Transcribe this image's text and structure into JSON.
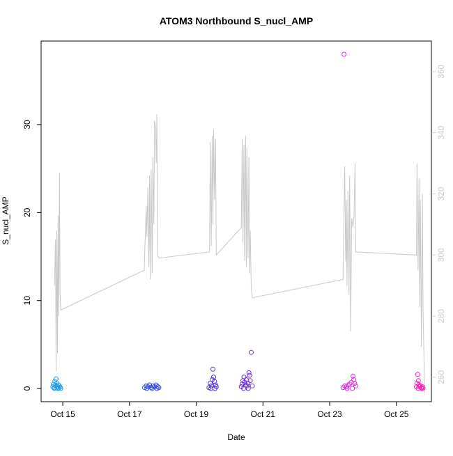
{
  "chart_data": {
    "type": "scatter",
    "title": "ATOM3 Northbound S_nucl_AMP",
    "xlabel": "Date",
    "ylabel": "S_nucl_AMP",
    "x_ticks": [
      "Oct 15",
      "Oct 17",
      "Oct 19",
      "Oct 21",
      "Oct 23",
      "Oct 25"
    ],
    "x_tick_days": [
      15,
      17,
      19,
      21,
      23,
      25
    ],
    "xlim_days": [
      14.35,
      26.05
    ],
    "y_left_ticks": [
      0,
      10,
      20,
      30
    ],
    "y_left_tick_labels": [
      "0",
      "10",
      "20",
      "30"
    ],
    "ylim_left": [
      -1.5,
      39.5
    ],
    "y_right_ticks": [
      260,
      280,
      300,
      320,
      340,
      360
    ],
    "y_right_tick_labels": [
      "260",
      "280",
      "300",
      "320",
      "340",
      "360"
    ],
    "ylim_right": [
      252,
      370
    ],
    "grid": false,
    "colors": {
      "axis": "#000000",
      "right_axis": "#cccccc",
      "secondary_line": "#c8c8c8",
      "background": "#ffffff"
    },
    "secondary_series": {
      "axis": "right",
      "segments": [
        [
          [
            14.75,
            290
          ],
          [
            14.78,
            305
          ],
          [
            14.8,
            262
          ],
          [
            14.82,
            308
          ],
          [
            14.84,
            268
          ],
          [
            14.86,
            313
          ],
          [
            14.88,
            280
          ],
          [
            14.9,
            327
          ],
          [
            14.92,
            286
          ],
          [
            14.94,
            282
          ]
        ],
        [
          [
            17.44,
            295
          ],
          [
            17.5,
            316
          ],
          [
            17.52,
            306
          ],
          [
            17.55,
            322
          ],
          [
            17.58,
            296
          ],
          [
            17.6,
            326
          ],
          [
            17.62,
            292
          ],
          [
            17.65,
            328
          ],
          [
            17.68,
            294
          ],
          [
            17.7,
            332
          ],
          [
            17.73,
            310
          ],
          [
            17.75,
            344
          ],
          [
            17.78,
            342
          ],
          [
            17.8,
            330
          ],
          [
            17.82,
            346
          ],
          [
            17.84,
            300
          ],
          [
            17.88,
            299
          ]
        ],
        [
          [
            19.4,
            301
          ],
          [
            19.42,
            337
          ],
          [
            19.45,
            303
          ],
          [
            19.48,
            339
          ],
          [
            19.5,
            310
          ],
          [
            19.52,
            341
          ],
          [
            19.55,
            318
          ],
          [
            19.58,
            338
          ],
          [
            19.6,
            300
          ]
        ],
        [
          [
            20.35,
            309
          ],
          [
            20.38,
            338
          ],
          [
            20.4,
            304
          ],
          [
            20.43,
            336
          ],
          [
            20.45,
            298
          ],
          [
            20.48,
            339
          ],
          [
            20.5,
            296
          ],
          [
            20.52,
            335
          ],
          [
            20.55,
            299
          ],
          [
            20.58,
            332
          ],
          [
            20.6,
            294
          ],
          [
            20.62,
            308
          ],
          [
            20.65,
            289
          ],
          [
            20.68,
            286
          ]
        ],
        [
          [
            23.4,
            292
          ],
          [
            23.45,
            329
          ],
          [
            23.48,
            298
          ],
          [
            23.5,
            318
          ],
          [
            23.52,
            290
          ],
          [
            23.55,
            321
          ],
          [
            23.58,
            287
          ],
          [
            23.6,
            326
          ],
          [
            23.63,
            275
          ],
          [
            23.66,
            312
          ],
          [
            23.7,
            309
          ],
          [
            23.73,
            313
          ],
          [
            23.76,
            330
          ],
          [
            23.78,
            301
          ]
        ],
        [
          [
            25.6,
            300
          ],
          [
            25.62,
            330
          ],
          [
            25.65,
            295
          ],
          [
            25.68,
            325
          ],
          [
            25.7,
            283
          ],
          [
            25.72,
            318
          ],
          [
            25.75,
            270
          ],
          [
            25.78,
            320
          ],
          [
            25.8,
            282
          ],
          [
            25.85,
            255
          ]
        ]
      ]
    },
    "scatter_points": [
      {
        "x": 14.7,
        "y": 0.2
      },
      {
        "x": 14.72,
        "y": 0.5
      },
      {
        "x": 14.74,
        "y": 0.1
      },
      {
        "x": 14.76,
        "y": 0.8
      },
      {
        "x": 14.78,
        "y": 0.3
      },
      {
        "x": 14.8,
        "y": 1.1
      },
      {
        "x": 14.82,
        "y": 0.6
      },
      {
        "x": 14.84,
        "y": 0.2
      },
      {
        "x": 14.86,
        "y": 0.4
      },
      {
        "x": 14.88,
        "y": 0.05
      },
      {
        "x": 14.9,
        "y": 0.3
      },
      {
        "x": 14.92,
        "y": 0.15
      },
      {
        "x": 14.94,
        "y": 0.0
      },
      {
        "x": 14.75,
        "y": 0.0
      },
      {
        "x": 14.85,
        "y": 0.0
      },
      {
        "x": 17.45,
        "y": 0.1
      },
      {
        "x": 17.5,
        "y": 0.3
      },
      {
        "x": 17.55,
        "y": 0.2
      },
      {
        "x": 17.6,
        "y": 0.4
      },
      {
        "x": 17.65,
        "y": 0.1
      },
      {
        "x": 17.7,
        "y": 0.3
      },
      {
        "x": 17.75,
        "y": 0.2
      },
      {
        "x": 17.8,
        "y": 0.4
      },
      {
        "x": 17.85,
        "y": 0.2
      },
      {
        "x": 17.88,
        "y": 0.1
      },
      {
        "x": 17.52,
        "y": 0.0
      },
      {
        "x": 17.68,
        "y": 0.0
      },
      {
        "x": 17.82,
        "y": 0.0
      },
      {
        "x": 19.38,
        "y": 0.1
      },
      {
        "x": 19.42,
        "y": 0.6
      },
      {
        "x": 19.45,
        "y": 0.3
      },
      {
        "x": 19.48,
        "y": 1.0
      },
      {
        "x": 19.5,
        "y": 2.2
      },
      {
        "x": 19.52,
        "y": 1.3
      },
      {
        "x": 19.55,
        "y": 0.8
      },
      {
        "x": 19.58,
        "y": 0.4
      },
      {
        "x": 19.6,
        "y": 0.2
      },
      {
        "x": 19.44,
        "y": 0.0
      },
      {
        "x": 19.56,
        "y": 0.0
      },
      {
        "x": 20.35,
        "y": 0.2
      },
      {
        "x": 20.38,
        "y": 0.5
      },
      {
        "x": 20.4,
        "y": 0.9
      },
      {
        "x": 20.43,
        "y": 1.3
      },
      {
        "x": 20.45,
        "y": 0.7
      },
      {
        "x": 20.48,
        "y": 0.4
      },
      {
        "x": 20.5,
        "y": 1.0
      },
      {
        "x": 20.52,
        "y": 0.3
      },
      {
        "x": 20.55,
        "y": 0.6
      },
      {
        "x": 20.58,
        "y": 1.8
      },
      {
        "x": 20.6,
        "y": 1.5
      },
      {
        "x": 20.62,
        "y": 0.9
      },
      {
        "x": 20.65,
        "y": 4.1
      },
      {
        "x": 20.68,
        "y": 0.3
      },
      {
        "x": 20.42,
        "y": 0.0
      },
      {
        "x": 20.56,
        "y": 0.0
      },
      {
        "x": 23.4,
        "y": 0.1
      },
      {
        "x": 23.45,
        "y": 0.3
      },
      {
        "x": 23.5,
        "y": 0.2
      },
      {
        "x": 23.55,
        "y": 0.4
      },
      {
        "x": 23.6,
        "y": 0.5
      },
      {
        "x": 23.65,
        "y": 0.7
      },
      {
        "x": 23.7,
        "y": 1.4
      },
      {
        "x": 23.72,
        "y": 1.0
      },
      {
        "x": 23.75,
        "y": 0.6
      },
      {
        "x": 23.78,
        "y": 0.3
      },
      {
        "x": 23.43,
        "y": 38.0
      },
      {
        "x": 23.52,
        "y": 0.0
      },
      {
        "x": 23.68,
        "y": 0.0
      },
      {
        "x": 25.6,
        "y": 0.2
      },
      {
        "x": 25.62,
        "y": 0.6
      },
      {
        "x": 25.64,
        "y": 1.6
      },
      {
        "x": 25.66,
        "y": 0.9
      },
      {
        "x": 25.68,
        "y": 0.4
      },
      {
        "x": 25.7,
        "y": 0.2
      },
      {
        "x": 25.72,
        "y": 0.3
      },
      {
        "x": 25.75,
        "y": 0.1
      },
      {
        "x": 25.78,
        "y": 0.2
      },
      {
        "x": 25.8,
        "y": 0.05
      },
      {
        "x": 25.65,
        "y": 0.0
      },
      {
        "x": 25.76,
        "y": 0.0
      }
    ],
    "color_ramp": [
      "#1aa7e8",
      "#1f5ce6",
      "#4a2fe8",
      "#8a2be2",
      "#d633e0",
      "#ff1fb0"
    ]
  }
}
